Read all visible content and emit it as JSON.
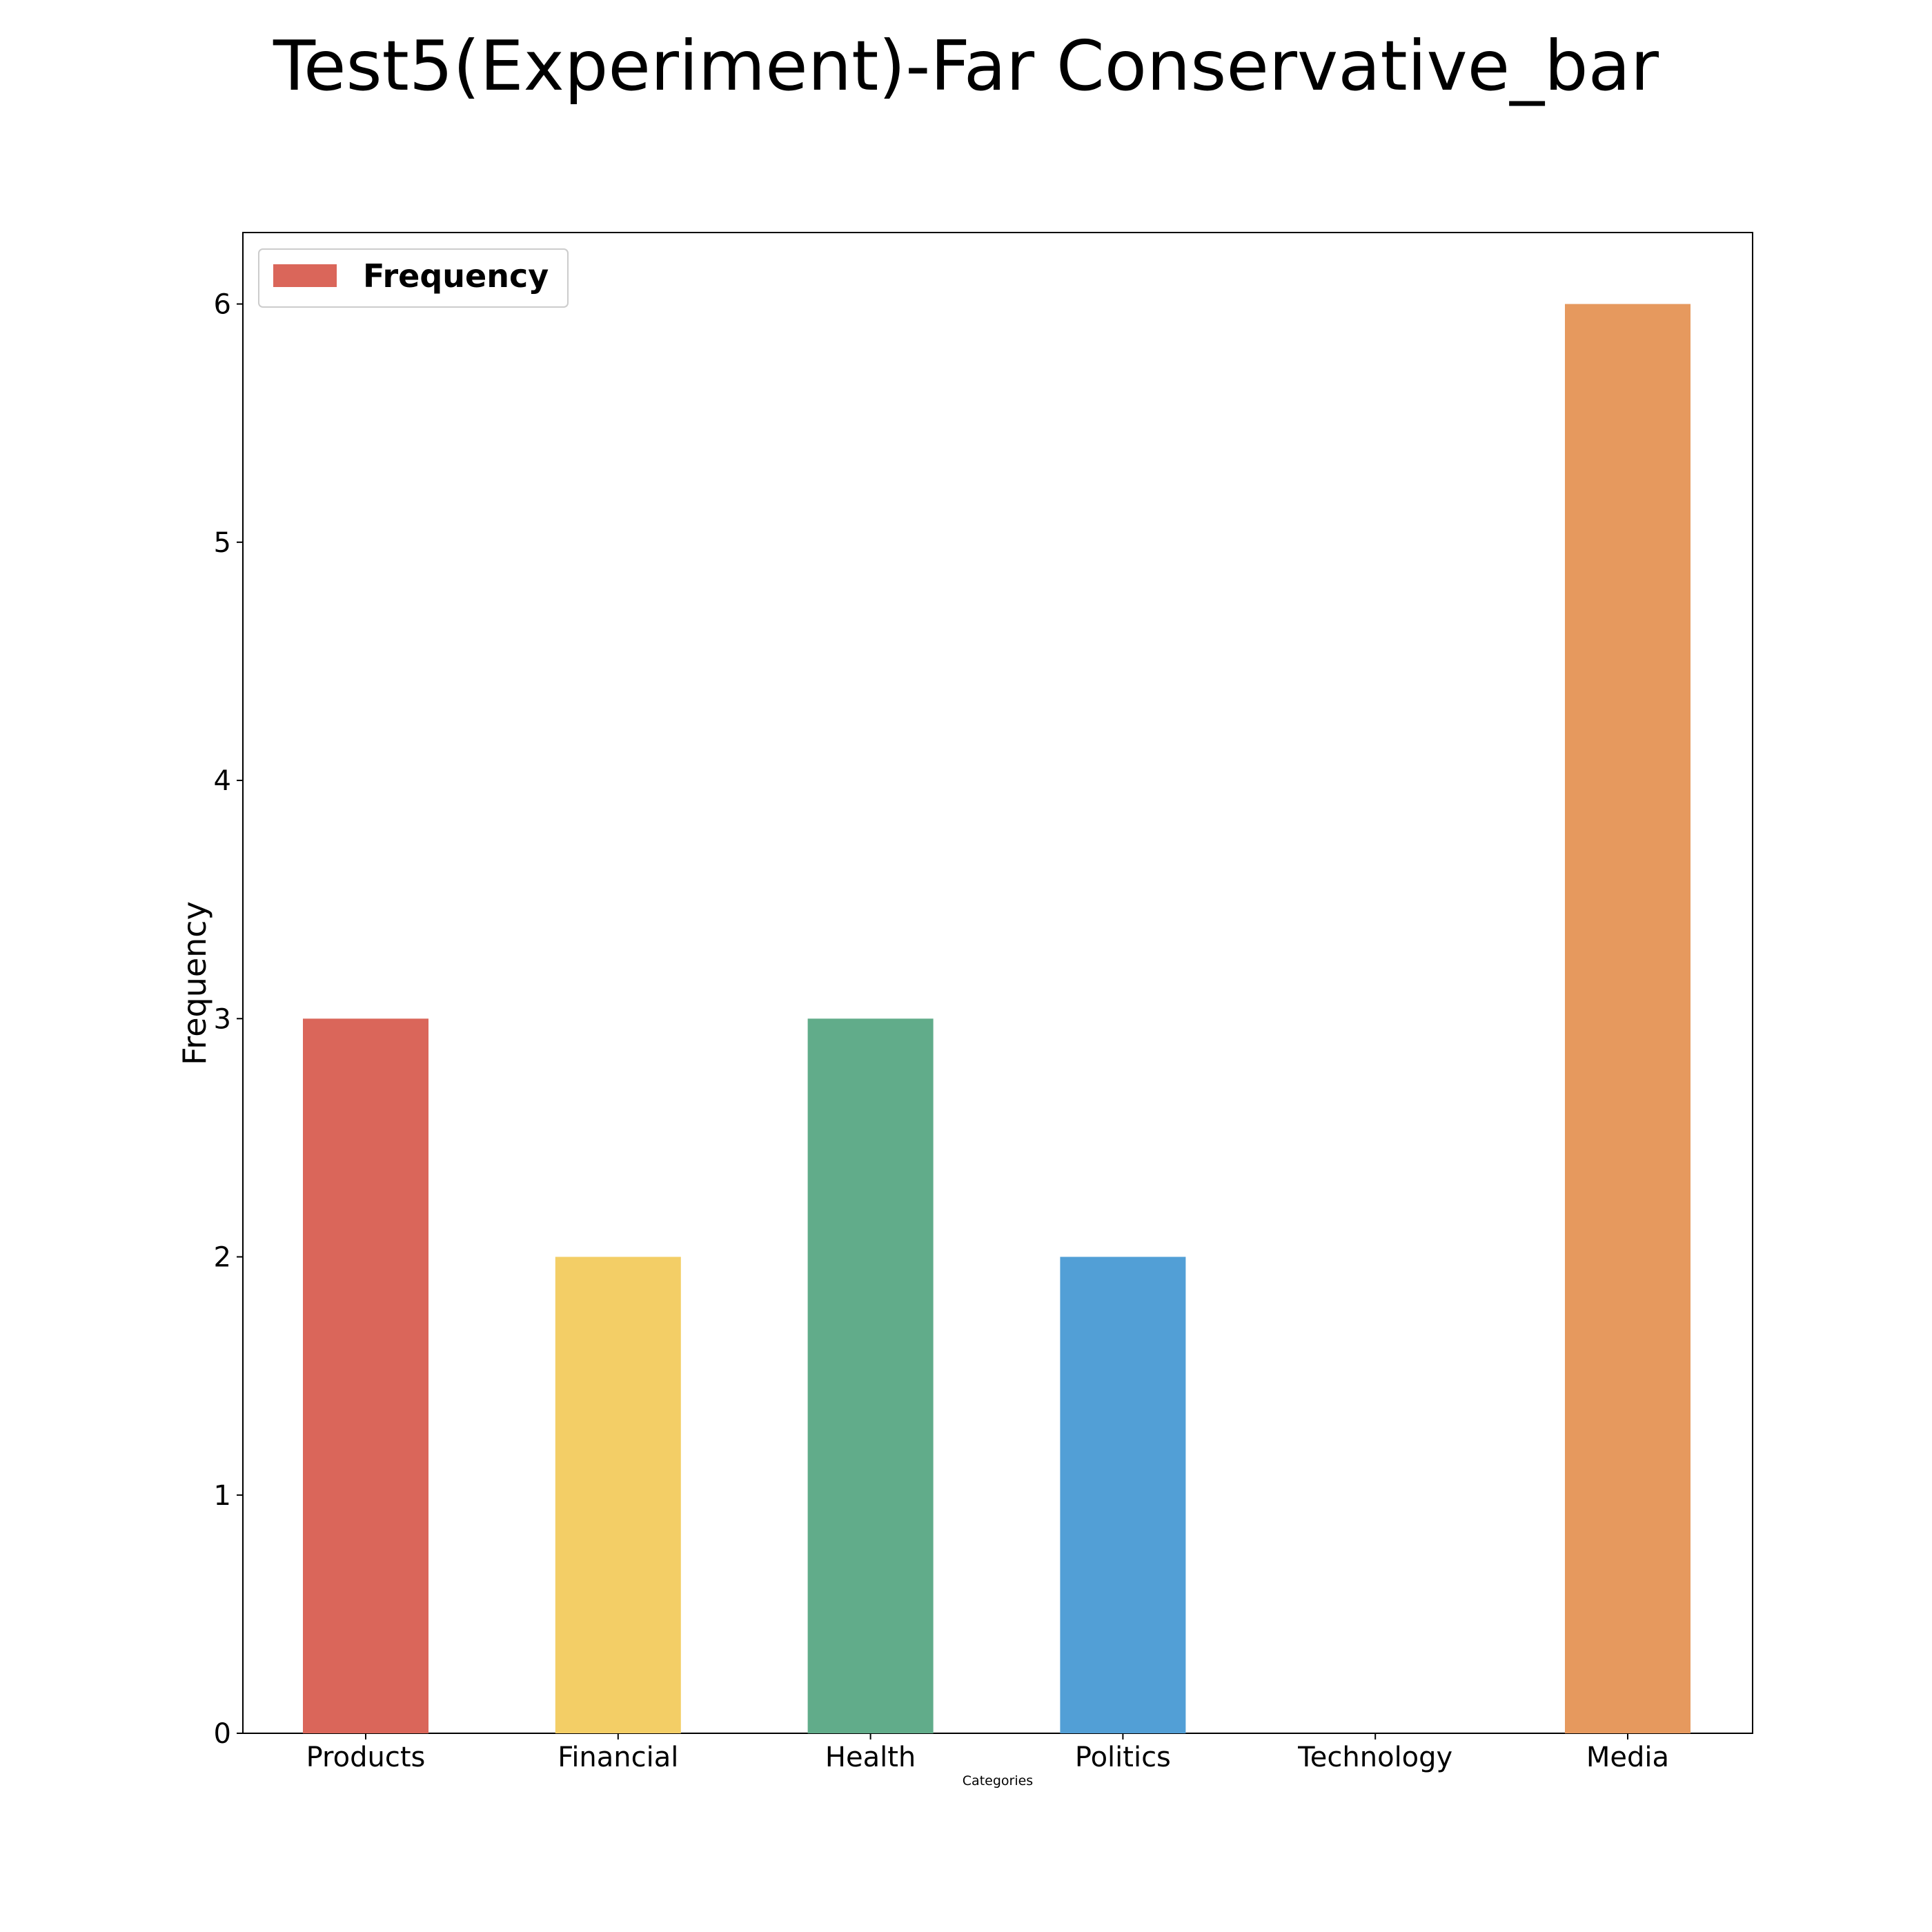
{
  "chart_data": {
    "type": "bar",
    "title": "Test5(Experiment)-Far Conservative_bar",
    "xlabel": "Categories",
    "ylabel": "Frequency",
    "categories": [
      "Products",
      "Financial",
      "Health",
      "Politics",
      "Technology",
      "Media"
    ],
    "values": [
      3,
      2,
      3,
      2,
      0,
      6
    ],
    "bar_colors": [
      "#da665a",
      "#f3ce66",
      "#61ac8a",
      "#529fd6",
      "#c7a58e",
      "#e6995e"
    ],
    "yticks": [
      "0",
      "1",
      "2",
      "3",
      "4",
      "5",
      "6"
    ],
    "ylim": [
      0,
      6.3
    ],
    "grid": false,
    "legend": {
      "position": "top-left",
      "entries": [
        {
          "label": "Frequency",
          "color": "#da665a"
        }
      ]
    }
  }
}
